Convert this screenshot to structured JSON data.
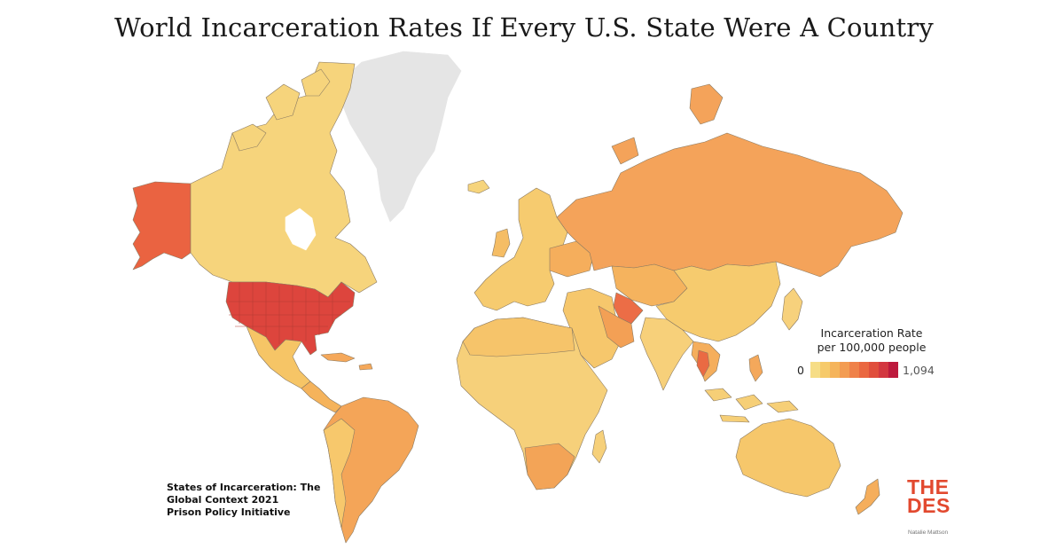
{
  "title": "World Incarceration Rates If Every U.S. State Were A Country",
  "legend": {
    "title_line1": "Incarceration Rate",
    "title_line2": "per 100,000 people",
    "min_label": "0",
    "max_label": "1,094",
    "color_steps": [
      "#f6dd86",
      "#f6ca6a",
      "#f5b45b",
      "#f39c52",
      "#ef8149",
      "#ea6740",
      "#e04e3c",
      "#d33740",
      "#bd1a3d"
    ]
  },
  "source": {
    "line1": "States of Incarceration: The",
    "line2": "Global Context 2021",
    "line3": "Prison Policy Initiative"
  },
  "logo": {
    "line1": "THE",
    "line2": "DES"
  },
  "credit": "Natalie Mattson",
  "colors": {
    "no_data": "#e5e5e5",
    "low": "#f6d57a",
    "mid": "#f5a75a",
    "high": "#ec6b44",
    "very_high": "#dc3f3c",
    "border": "#8a7a62"
  }
}
